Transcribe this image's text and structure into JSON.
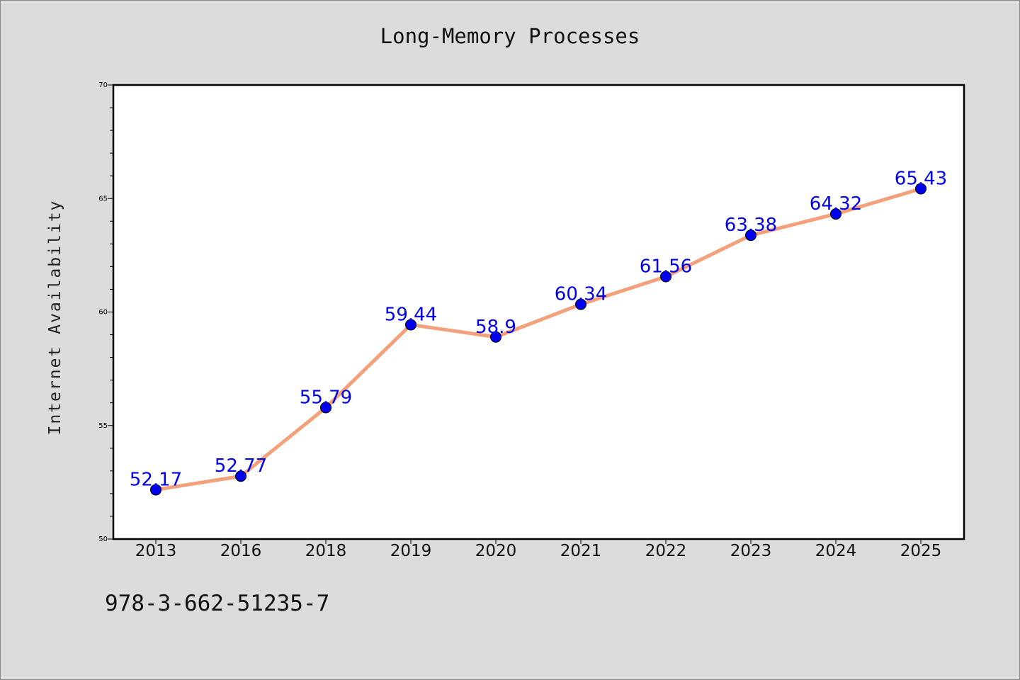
{
  "chart_data": {
    "type": "line",
    "title": "Long-Memory Processes",
    "xlabel": "",
    "ylabel": "Internet Availability",
    "categories": [
      "2013",
      "2016",
      "2018",
      "2019",
      "2020",
      "2021",
      "2022",
      "2023",
      "2024",
      "2025"
    ],
    "series": [
      {
        "values": [
          52.17,
          52.77,
          55.79,
          59.44,
          58.9,
          60.34,
          61.56,
          63.38,
          64.32,
          65.43
        ],
        "data_labels": [
          "52.17",
          "52.77",
          "55.79",
          "59.44",
          "58.9",
          "60.34",
          "61.56",
          "63.38",
          "64.32",
          "65.43"
        ],
        "line_color": "#f4a07a",
        "marker_color": "#0000ee"
      }
    ],
    "ylim": [
      50,
      70
    ],
    "y_ticks": [
      "50",
      "55",
      "60",
      "65",
      "70"
    ],
    "grid": false,
    "legend": "none",
    "label_color": "#0000ee"
  },
  "footer": {
    "code": "978-3-662-51235-7"
  },
  "colors": {
    "background": "#dcdcdc",
    "plot_background": "#ffffff",
    "axis": "#000000"
  }
}
